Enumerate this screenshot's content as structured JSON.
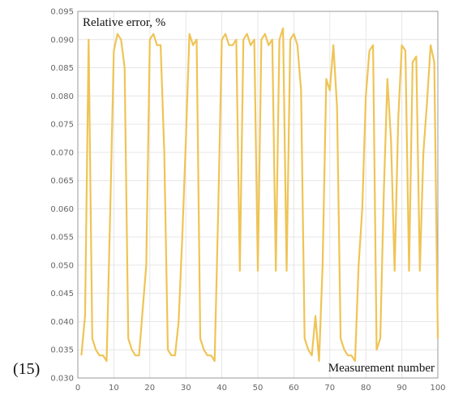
{
  "figure_label": "(15)",
  "chart_data": {
    "type": "line",
    "title": "Relative error, %",
    "ylabel": "Relative error, %",
    "xlabel": "Measurement number",
    "xlim": [
      0,
      100
    ],
    "ylim": [
      0.03,
      0.095
    ],
    "grid": true,
    "line_color": "#EFC455",
    "xticks": [
      0,
      10,
      20,
      30,
      40,
      50,
      60,
      70,
      80,
      90,
      100
    ],
    "yticks": [
      0.03,
      0.035,
      0.04,
      0.045,
      0.05,
      0.055,
      0.06,
      0.065,
      0.07,
      0.075,
      0.08,
      0.085,
      0.09,
      0.095
    ],
    "x": [
      1,
      2,
      3,
      4,
      5,
      6,
      7,
      8,
      9,
      10,
      11,
      12,
      13,
      14,
      15,
      16,
      17,
      18,
      19,
      20,
      21,
      22,
      23,
      24,
      25,
      26,
      27,
      28,
      29,
      30,
      31,
      32,
      33,
      34,
      35,
      36,
      37,
      38,
      39,
      40,
      41,
      42,
      43,
      44,
      45,
      46,
      47,
      48,
      49,
      50,
      51,
      52,
      53,
      54,
      55,
      56,
      57,
      58,
      59,
      60,
      61,
      62,
      63,
      64,
      65,
      66,
      67,
      68,
      69,
      70,
      71,
      72,
      73,
      74,
      75,
      76,
      77,
      78,
      79,
      80,
      81,
      82,
      83,
      84,
      85,
      86,
      87,
      88,
      89,
      90,
      91,
      92,
      93,
      94,
      95,
      96,
      97,
      98,
      99,
      100
    ],
    "y": [
      0.034,
      0.041,
      0.09,
      0.037,
      0.035,
      0.034,
      0.034,
      0.033,
      0.06,
      0.088,
      0.091,
      0.09,
      0.085,
      0.037,
      0.035,
      0.034,
      0.034,
      0.042,
      0.05,
      0.09,
      0.091,
      0.089,
      0.089,
      0.07,
      0.035,
      0.034,
      0.034,
      0.04,
      0.055,
      0.072,
      0.091,
      0.089,
      0.09,
      0.037,
      0.035,
      0.034,
      0.034,
      0.033,
      0.06,
      0.09,
      0.091,
      0.089,
      0.089,
      0.09,
      0.049,
      0.09,
      0.091,
      0.089,
      0.09,
      0.049,
      0.09,
      0.091,
      0.089,
      0.09,
      0.049,
      0.09,
      0.092,
      0.049,
      0.09,
      0.091,
      0.089,
      0.081,
      0.037,
      0.035,
      0.034,
      0.041,
      0.033,
      0.05,
      0.083,
      0.081,
      0.089,
      0.078,
      0.037,
      0.035,
      0.034,
      0.034,
      0.033,
      0.05,
      0.06,
      0.08,
      0.088,
      0.089,
      0.035,
      0.037,
      0.063,
      0.083,
      0.072,
      0.049,
      0.076,
      0.089,
      0.088,
      0.049,
      0.086,
      0.087,
      0.049,
      0.07,
      0.079,
      0.089,
      0.086,
      0.037
    ]
  }
}
